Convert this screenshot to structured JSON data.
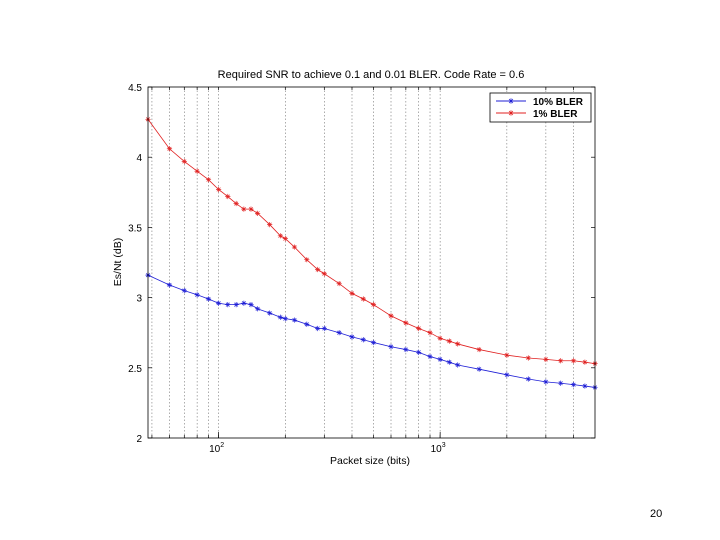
{
  "slide": {
    "page_number": "20"
  },
  "chart_data": {
    "type": "line",
    "title": "Required SNR to achieve 0.1 and 0.01 BLER. Code Rate = 0.6",
    "xlabel": "Packet size (bits)",
    "ylabel": "Es/Nt (dB)",
    "xscale": "log",
    "xlim": [
      48,
      5000
    ],
    "ylim": [
      2,
      4.5
    ],
    "grid": "x-minor-and-major, dotted",
    "legend_position": "top-right",
    "x_tick_labels": [
      "10^2",
      "10^3"
    ],
    "x_tick_values": [
      100,
      1000
    ],
    "y_tick_labels": [
      "2",
      "2.5",
      "3",
      "3.5",
      "4",
      "4.5"
    ],
    "y_tick_values": [
      2,
      2.5,
      3,
      3.5,
      4,
      4.5
    ],
    "series": [
      {
        "name": "10% BLER",
        "color": "#1f1fd6",
        "marker": "asterisk",
        "x": [
          48,
          60,
          70,
          80,
          90,
          100,
          110,
          120,
          130,
          140,
          150,
          170,
          190,
          200,
          220,
          250,
          280,
          300,
          350,
          400,
          450,
          500,
          600,
          700,
          800,
          900,
          1000,
          1100,
          1200,
          1500,
          2000,
          2500,
          3000,
          3500,
          4000,
          4500,
          5000
        ],
        "y": [
          3.16,
          3.09,
          3.05,
          3.02,
          2.99,
          2.96,
          2.95,
          2.95,
          2.96,
          2.95,
          2.92,
          2.89,
          2.86,
          2.85,
          2.84,
          2.81,
          2.78,
          2.78,
          2.75,
          2.72,
          2.7,
          2.68,
          2.65,
          2.63,
          2.61,
          2.58,
          2.56,
          2.54,
          2.52,
          2.49,
          2.45,
          2.42,
          2.4,
          2.39,
          2.38,
          2.37,
          2.36
        ]
      },
      {
        "name": "1% BLER",
        "color": "#e02020",
        "marker": "asterisk",
        "x": [
          48,
          60,
          70,
          80,
          90,
          100,
          110,
          120,
          130,
          140,
          150,
          170,
          190,
          200,
          220,
          250,
          280,
          300,
          350,
          400,
          450,
          500,
          600,
          700,
          800,
          900,
          1000,
          1100,
          1200,
          1500,
          2000,
          2500,
          3000,
          3500,
          4000,
          4500,
          5000
        ],
        "y": [
          4.27,
          4.06,
          3.97,
          3.9,
          3.84,
          3.77,
          3.72,
          3.67,
          3.63,
          3.63,
          3.6,
          3.52,
          3.44,
          3.42,
          3.36,
          3.27,
          3.2,
          3.17,
          3.1,
          3.03,
          2.99,
          2.95,
          2.87,
          2.82,
          2.78,
          2.75,
          2.71,
          2.69,
          2.67,
          2.63,
          2.59,
          2.57,
          2.56,
          2.55,
          2.55,
          2.54,
          2.53
        ]
      }
    ]
  }
}
